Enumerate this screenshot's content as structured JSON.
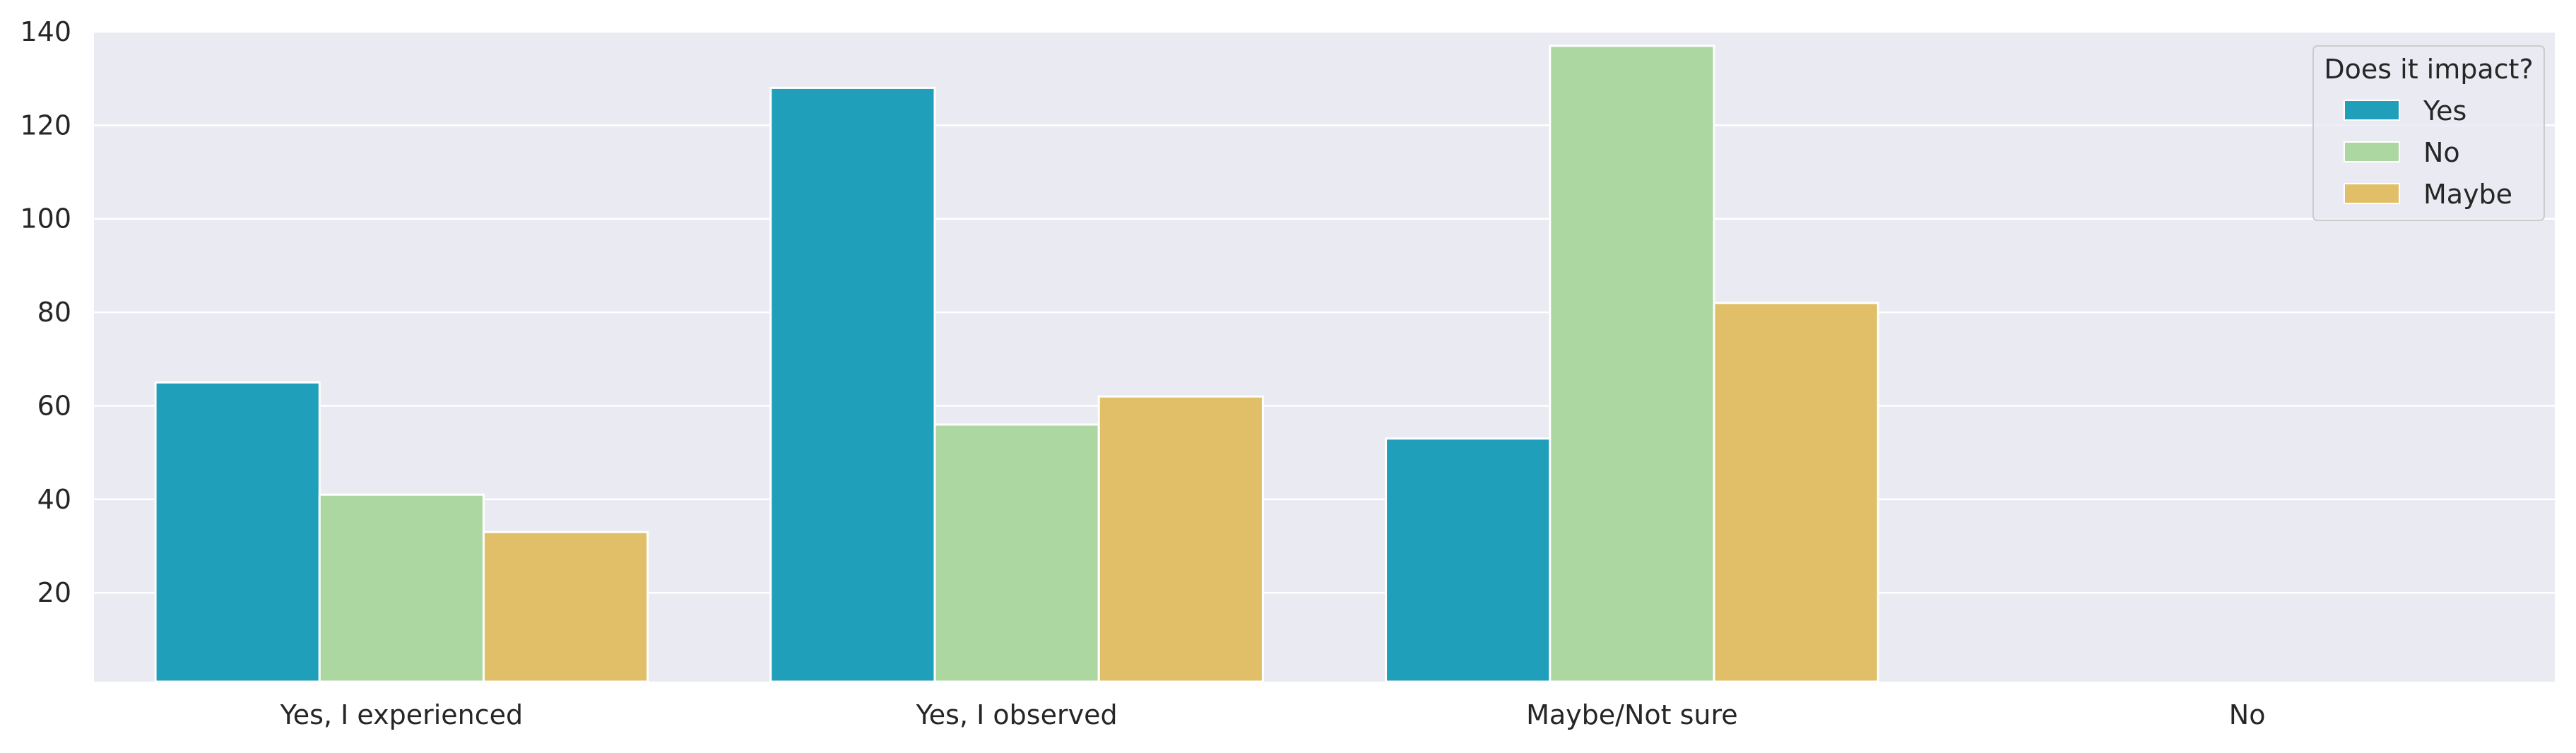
{
  "chart_data": {
    "type": "bar",
    "categories": [
      "Yes, I experienced",
      "Yes, I observed",
      "Maybe/Not sure",
      "No"
    ],
    "series": [
      {
        "name": "Yes",
        "values": [
          65,
          128,
          53,
          0
        ],
        "color": "#1f9fba"
      },
      {
        "name": "No",
        "values": [
          41,
          56,
          137,
          0
        ],
        "color": "#acd7a1"
      },
      {
        "name": "Maybe",
        "values": [
          33,
          62,
          82,
          0
        ],
        "color": "#e0bf68"
      }
    ],
    "title": "",
    "xlabel": "",
    "ylabel": "",
    "ylim": [
      1,
      140
    ],
    "yticks": [
      20,
      40,
      60,
      80,
      100,
      120,
      140
    ],
    "grid": true,
    "legend": {
      "title": "Does it impact?",
      "placement": "top-right"
    },
    "background": "#eaeaf2"
  }
}
